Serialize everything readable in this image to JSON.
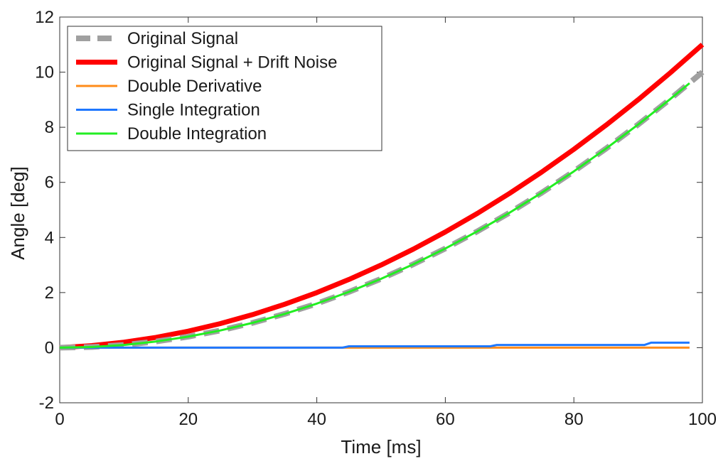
{
  "chart_data": {
    "type": "line",
    "xlabel": "Time [ms]",
    "ylabel": "Angle [deg]",
    "xlim": [
      0,
      100
    ],
    "ylim": [
      -2,
      12
    ],
    "xticks": [
      0,
      20,
      40,
      60,
      80,
      100
    ],
    "yticks": [
      -2,
      0,
      2,
      4,
      6,
      8,
      10,
      12
    ],
    "grid": false,
    "legend_position": "top-left",
    "series": [
      {
        "name": "Original Signal",
        "color": "#a0a0a0",
        "style": "dashed",
        "x": [
          0,
          5,
          10,
          15,
          20,
          25,
          30,
          35,
          40,
          45,
          50,
          55,
          60,
          65,
          70,
          75,
          80,
          85,
          90,
          95,
          100
        ],
        "y": [
          0,
          0.025,
          0.1,
          0.225,
          0.4,
          0.625,
          0.9,
          1.225,
          1.6,
          2.025,
          2.5,
          3.025,
          3.6,
          4.225,
          4.9,
          5.625,
          6.4,
          7.225,
          8.1,
          9.025,
          10.0
        ]
      },
      {
        "name": "Original Signal + Drift Noise",
        "color": "#ff0000",
        "style": "solid-thick",
        "x": [
          0,
          5,
          10,
          15,
          20,
          25,
          30,
          35,
          40,
          45,
          50,
          55,
          60,
          65,
          70,
          75,
          80,
          85,
          90,
          95,
          100
        ],
        "y": [
          0,
          0.075,
          0.2,
          0.375,
          0.6,
          0.875,
          1.2,
          1.575,
          2.0,
          2.475,
          3.0,
          3.575,
          4.2,
          4.875,
          5.6,
          6.375,
          7.2,
          8.075,
          9.0,
          9.975,
          11.0
        ]
      },
      {
        "name": "Double Derivative",
        "color": "#ff8c1a",
        "style": "solid",
        "x": [
          0,
          20,
          40,
          60,
          80,
          98
        ],
        "y": [
          0,
          0,
          0,
          0,
          0,
          0
        ]
      },
      {
        "name": "Single Integration",
        "color": "#1f78ff",
        "style": "solid",
        "x": [
          0,
          20,
          44,
          45,
          67,
          68,
          91,
          92,
          98
        ],
        "y": [
          0,
          0,
          0,
          0.05,
          0.05,
          0.1,
          0.1,
          0.18,
          0.18
        ]
      },
      {
        "name": "Double Integration",
        "color": "#22ee22",
        "style": "solid",
        "x": [
          0,
          5,
          10,
          15,
          20,
          25,
          30,
          35,
          40,
          45,
          50,
          55,
          60,
          65,
          70,
          75,
          80,
          85,
          90,
          95,
          98
        ],
        "y": [
          0,
          0.025,
          0.1,
          0.225,
          0.4,
          0.625,
          0.9,
          1.225,
          1.6,
          2.025,
          2.5,
          3.025,
          3.6,
          4.225,
          4.9,
          5.625,
          6.4,
          7.225,
          8.1,
          9.025,
          9.6
        ]
      }
    ]
  }
}
